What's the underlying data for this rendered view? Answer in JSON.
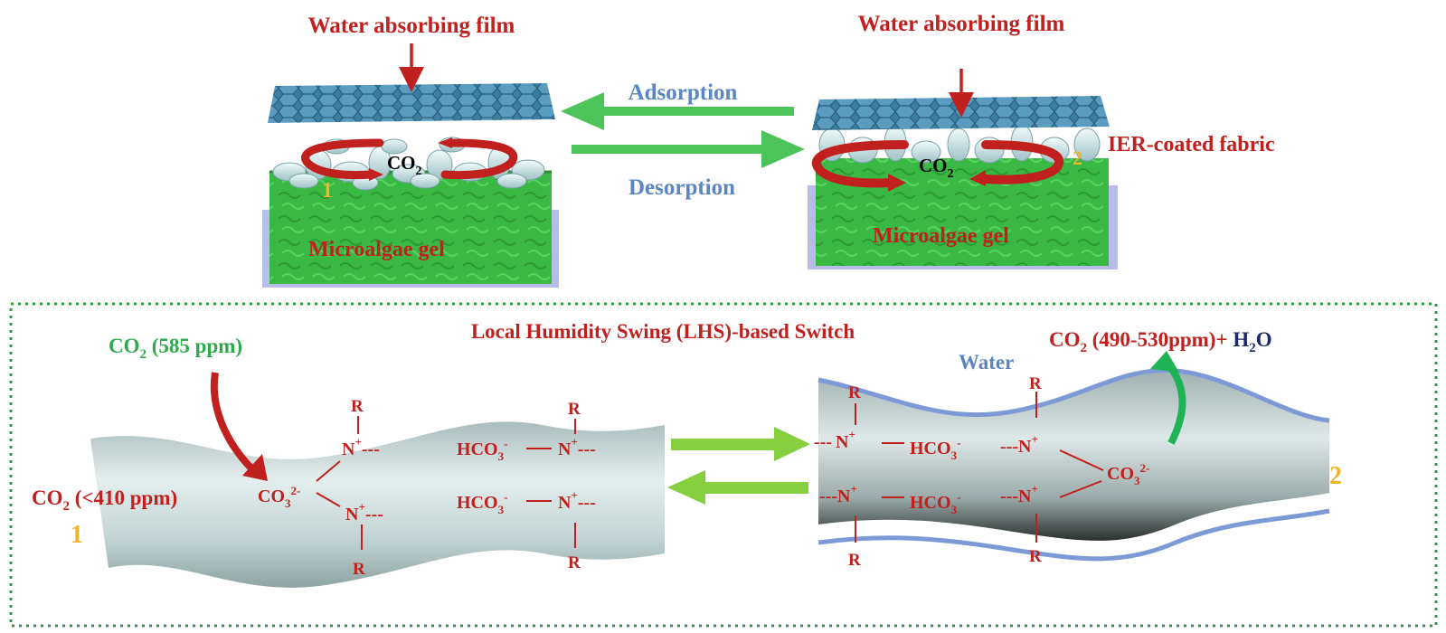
{
  "top": {
    "left_panel": {
      "film_label": "Water absorbing film",
      "gas": "CO",
      "gas_sub": "2",
      "state_number": "1",
      "gel_label": "Microalgae gel"
    },
    "right_panel": {
      "film_label": "Water absorbing film",
      "fabric_label": "IER-coated fabric",
      "gas": "CO",
      "gas_sub": "2",
      "state_number": "2",
      "gel_label": "Microalgae gel"
    },
    "arrow_top_label": "Adsorption",
    "arrow_bottom_label": "Desorption"
  },
  "bottom": {
    "title": "Local Humidity Swing (LHS)-based Switch",
    "left_fiber": {
      "input": {
        "pre": "CO",
        "sub": "2",
        "post": " (585 ppm)"
      },
      "output": {
        "pre": "CO",
        "sub": "2",
        "post": " (<410 ppm)"
      },
      "state_number": "1",
      "carbonate": {
        "pre": "CO",
        "sub": "3",
        "sup": "2-"
      },
      "bicarbonate": {
        "pre": "HCO",
        "sub": "3",
        "sup": "-"
      },
      "amine": {
        "pre": "N",
        "sup": "+",
        "post": "---"
      },
      "r_group": "R"
    },
    "right_fiber": {
      "water_label": "Water",
      "output": {
        "pre": "CO",
        "sub": "2",
        "post": " (490-530ppm)+ "
      },
      "water_formula": {
        "pre": "H",
        "sub": "2",
        "post": "O"
      },
      "state_number": "2",
      "carbonate": {
        "pre": "CO",
        "sub": "3",
        "sup": "2-"
      },
      "bicarbonate": {
        "pre": "HCO",
        "sub": "3",
        "sup": "-"
      },
      "amine": {
        "pre": "N",
        "sup": "+"
      },
      "r_group": "R",
      "dashes": "---"
    }
  },
  "colors": {
    "label_red": "#c0201e",
    "process_blue": "#5b86c0",
    "arrow_green": "#4cc45a",
    "gel_green": "#3cbf45",
    "film_blue": "#3f83a6",
    "fiber_gray": "#c9d9d9",
    "number_orange": "#f0b42a",
    "border_green": "#2f9a3c"
  },
  "icons": [
    "down-arrow-icon",
    "rotation-arrow-icon",
    "reaction-arrow-icon",
    "curved-arrow-icon"
  ]
}
